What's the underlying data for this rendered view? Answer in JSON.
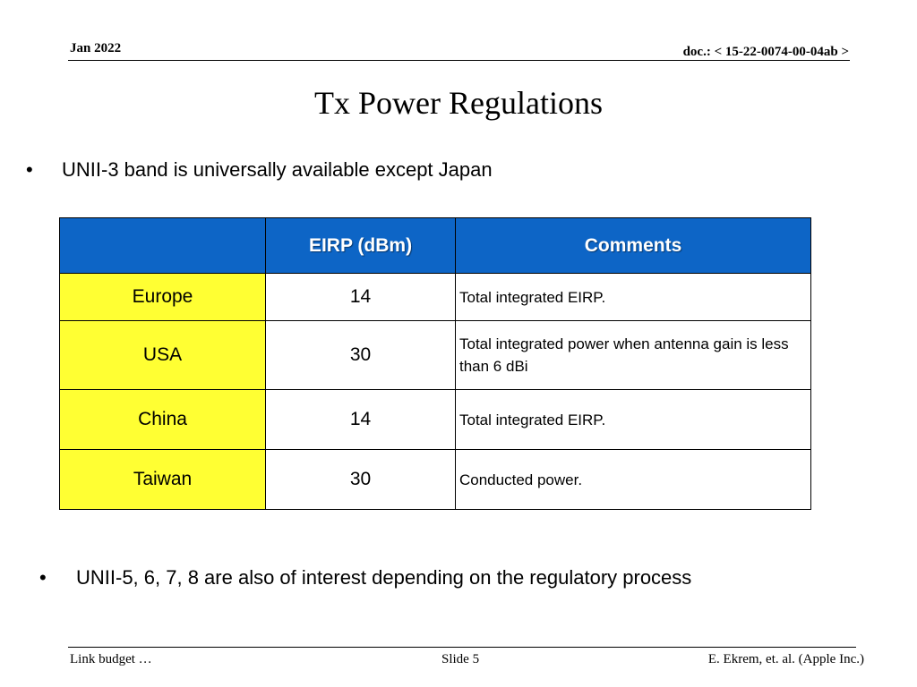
{
  "header": {
    "date": "Jan 2022",
    "doc_prefix": "doc.:",
    "doc_number": "< 15-22-0074-00-04ab >"
  },
  "title": "Tx Power Regulations",
  "bullets": [
    "UNII-3 band is universally available except Japan",
    "UNII-5, 6, 7, 8 are also of interest depending on the regulatory process"
  ],
  "table": {
    "headers": [
      "",
      "EIRP (dBm)",
      "Comments"
    ],
    "rows": [
      {
        "region": "Europe",
        "eirp": "14",
        "comment": "Total integrated EIRP."
      },
      {
        "region": "USA",
        "eirp": "30",
        "comment": "Total integrated power when antenna gain is less than 6 dBi"
      },
      {
        "region": "China",
        "eirp": "14",
        "comment": "Total integrated EIRP."
      },
      {
        "region": "Taiwan",
        "eirp": "30",
        "comment": "Conducted power."
      }
    ]
  },
  "footer": {
    "left": "Link budget …",
    "center": "Slide 5",
    "right": "E. Ekrem, et. al. (Apple Inc.)"
  },
  "colors": {
    "header_fill": "#0d65c6",
    "region_fill": "#ffff33"
  }
}
